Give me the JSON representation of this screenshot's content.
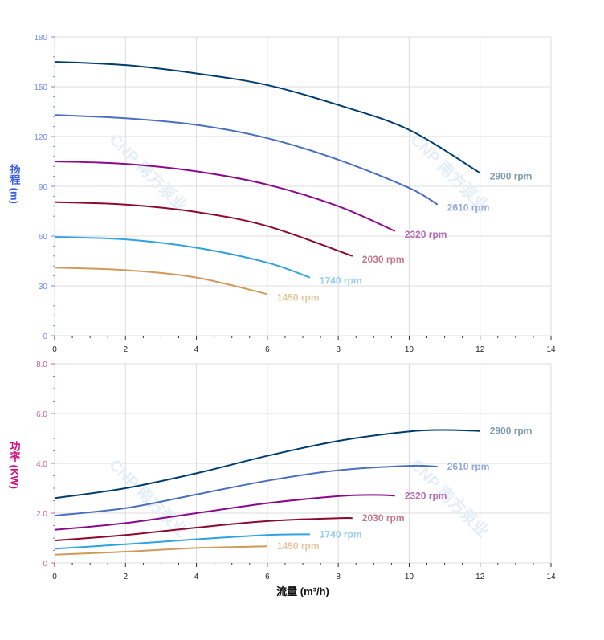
{
  "chart_data": [
    {
      "type": "line",
      "ylabel": "扬程 (m)",
      "ylabel_chars": [
        "扬",
        "程",
        "(m)"
      ],
      "ylabel_color": "#3a5fe0",
      "xlim": [
        0,
        14
      ],
      "ylim": [
        0,
        180
      ],
      "xticks": [
        "0",
        "2",
        "4",
        "6",
        "8",
        "10",
        "12",
        "14"
      ],
      "yticks": [
        "0",
        "30",
        "60",
        "90",
        "120",
        "150",
        "180"
      ],
      "grid": true,
      "tick_color": "#6f8cf0",
      "series": [
        {
          "name": "2900 rpm",
          "color": "#003d6e",
          "label_color": "#7f9aae",
          "x": [
            0,
            2,
            4,
            6,
            8,
            10,
            12
          ],
          "y": [
            165,
            163,
            158,
            151,
            139,
            124,
            98
          ]
        },
        {
          "name": "2610 rpm",
          "color": "#4a6fbf",
          "label_color": "#93a9dc",
          "x": [
            0,
            2,
            4,
            6,
            8,
            10,
            10.8
          ],
          "y": [
            133,
            131,
            127,
            119,
            106,
            89,
            79
          ]
        },
        {
          "name": "2320 rpm",
          "color": "#8b0a8b",
          "label_color": "#b56ab5",
          "x": [
            0,
            2,
            4,
            6,
            8,
            9.6
          ],
          "y": [
            105,
            103.5,
            99,
            91,
            78,
            63
          ]
        },
        {
          "name": "2030 rpm",
          "color": "#8b0a2e",
          "label_color": "#c07a8a",
          "x": [
            0,
            2,
            4,
            6,
            8.4
          ],
          "y": [
            80.5,
            79,
            74.5,
            66,
            48
          ]
        },
        {
          "name": "1740 rpm",
          "color": "#2fa3e0",
          "label_color": "#95cdef",
          "x": [
            0,
            2,
            4,
            6,
            7.2
          ],
          "y": [
            59.5,
            58,
            53,
            44,
            35
          ]
        },
        {
          "name": "1450 rpm",
          "color": "#d09a5a",
          "label_color": "#e8c8a2",
          "x": [
            0,
            2,
            4,
            6
          ],
          "y": [
            41,
            39.5,
            35,
            25
          ]
        }
      ]
    },
    {
      "type": "line",
      "ylabel": "功率 (KW)",
      "ylabel_chars": [
        "功",
        "率",
        "(KW)"
      ],
      "ylabel_color": "#c8127f",
      "xlabel": "流量 (m³/h)",
      "xlim": [
        0,
        14
      ],
      "ylim": [
        0,
        8
      ],
      "xticks": [
        "0",
        "2",
        "4",
        "6",
        "8",
        "10",
        "12",
        "14"
      ],
      "yticks": [
        "0",
        "2.0",
        "4.0",
        "6.0",
        "8.0"
      ],
      "grid": true,
      "tick_color": "#d0608f",
      "series": [
        {
          "name": "2900 rpm",
          "color": "#003d6e",
          "label_color": "#7f9aae",
          "x": [
            0,
            2,
            4,
            6,
            8,
            10,
            11,
            12
          ],
          "y": [
            2.6,
            3.0,
            3.6,
            4.3,
            4.9,
            5.28,
            5.34,
            5.3
          ]
        },
        {
          "name": "2610 rpm",
          "color": "#4a6fbf",
          "label_color": "#93a9dc",
          "x": [
            0,
            2,
            4,
            6,
            8,
            10,
            10.8
          ],
          "y": [
            1.9,
            2.2,
            2.75,
            3.3,
            3.72,
            3.9,
            3.87
          ]
        },
        {
          "name": "2320 rpm",
          "color": "#8b0a8b",
          "label_color": "#b56ab5",
          "x": [
            0,
            2,
            4,
            6,
            8,
            9,
            9.6
          ],
          "y": [
            1.33,
            1.6,
            2.0,
            2.4,
            2.68,
            2.73,
            2.7
          ]
        },
        {
          "name": "2030 rpm",
          "color": "#8b0a2e",
          "label_color": "#c07a8a",
          "x": [
            0,
            2,
            4,
            6,
            8,
            8.4
          ],
          "y": [
            0.9,
            1.12,
            1.42,
            1.68,
            1.8,
            1.8
          ]
        },
        {
          "name": "1740 rpm",
          "color": "#2fa3e0",
          "label_color": "#95cdef",
          "x": [
            0,
            2,
            4,
            6,
            7.2
          ],
          "y": [
            0.57,
            0.75,
            0.95,
            1.12,
            1.15
          ]
        },
        {
          "name": "1450 rpm",
          "color": "#d09a5a",
          "label_color": "#e8c8a2",
          "x": [
            0,
            2,
            4,
            6
          ],
          "y": [
            0.33,
            0.45,
            0.6,
            0.67
          ]
        }
      ]
    }
  ],
  "watermark": "CNP 南方泵业"
}
